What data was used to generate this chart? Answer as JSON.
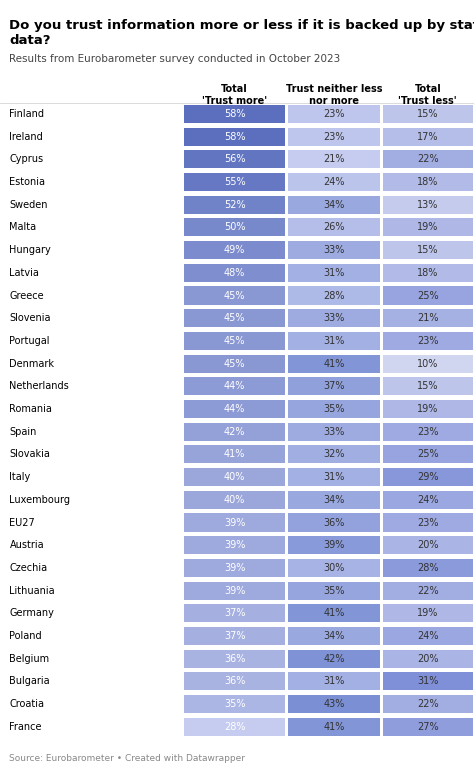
{
  "title": "Do you trust information more or less if it is backed up by statistics and\ndata?",
  "subtitle": "Results from Eurobarometer survey conducted in October 2023",
  "col_headers": [
    "Total\n'Trust more'",
    "Trust neither less\nnor more",
    "Total\n'Trust less'"
  ],
  "source": "Source: Eurobarometer • Created with Datawrapper",
  "countries": [
    "Finland",
    "Ireland",
    "Cyprus",
    "Estonia",
    "Sweden",
    "Malta",
    "Hungary",
    "Latvia",
    "Greece",
    "Slovenia",
    "Portugal",
    "Denmark",
    "Netherlands",
    "Romania",
    "Spain",
    "Slovakia",
    "Italy",
    "Luxembourg",
    "EU27",
    "Austria",
    "Czechia",
    "Lithuania",
    "Germany",
    "Poland",
    "Belgium",
    "Bulgaria",
    "Croatia",
    "France"
  ],
  "trust_more": [
    58,
    58,
    56,
    55,
    52,
    50,
    49,
    48,
    45,
    45,
    45,
    45,
    44,
    44,
    42,
    41,
    40,
    40,
    39,
    39,
    39,
    39,
    37,
    37,
    36,
    36,
    35,
    28
  ],
  "trust_neither": [
    23,
    23,
    21,
    24,
    34,
    26,
    33,
    31,
    28,
    33,
    31,
    41,
    37,
    35,
    33,
    32,
    31,
    34,
    36,
    39,
    30,
    35,
    41,
    34,
    42,
    31,
    43,
    41
  ],
  "trust_less": [
    15,
    17,
    22,
    18,
    13,
    19,
    15,
    18,
    25,
    21,
    23,
    10,
    15,
    19,
    23,
    25,
    29,
    24,
    23,
    20,
    28,
    22,
    19,
    24,
    20,
    31,
    22,
    27
  ],
  "bg_color": "#ffffff",
  "fig_width": 4.74,
  "fig_height": 7.77
}
